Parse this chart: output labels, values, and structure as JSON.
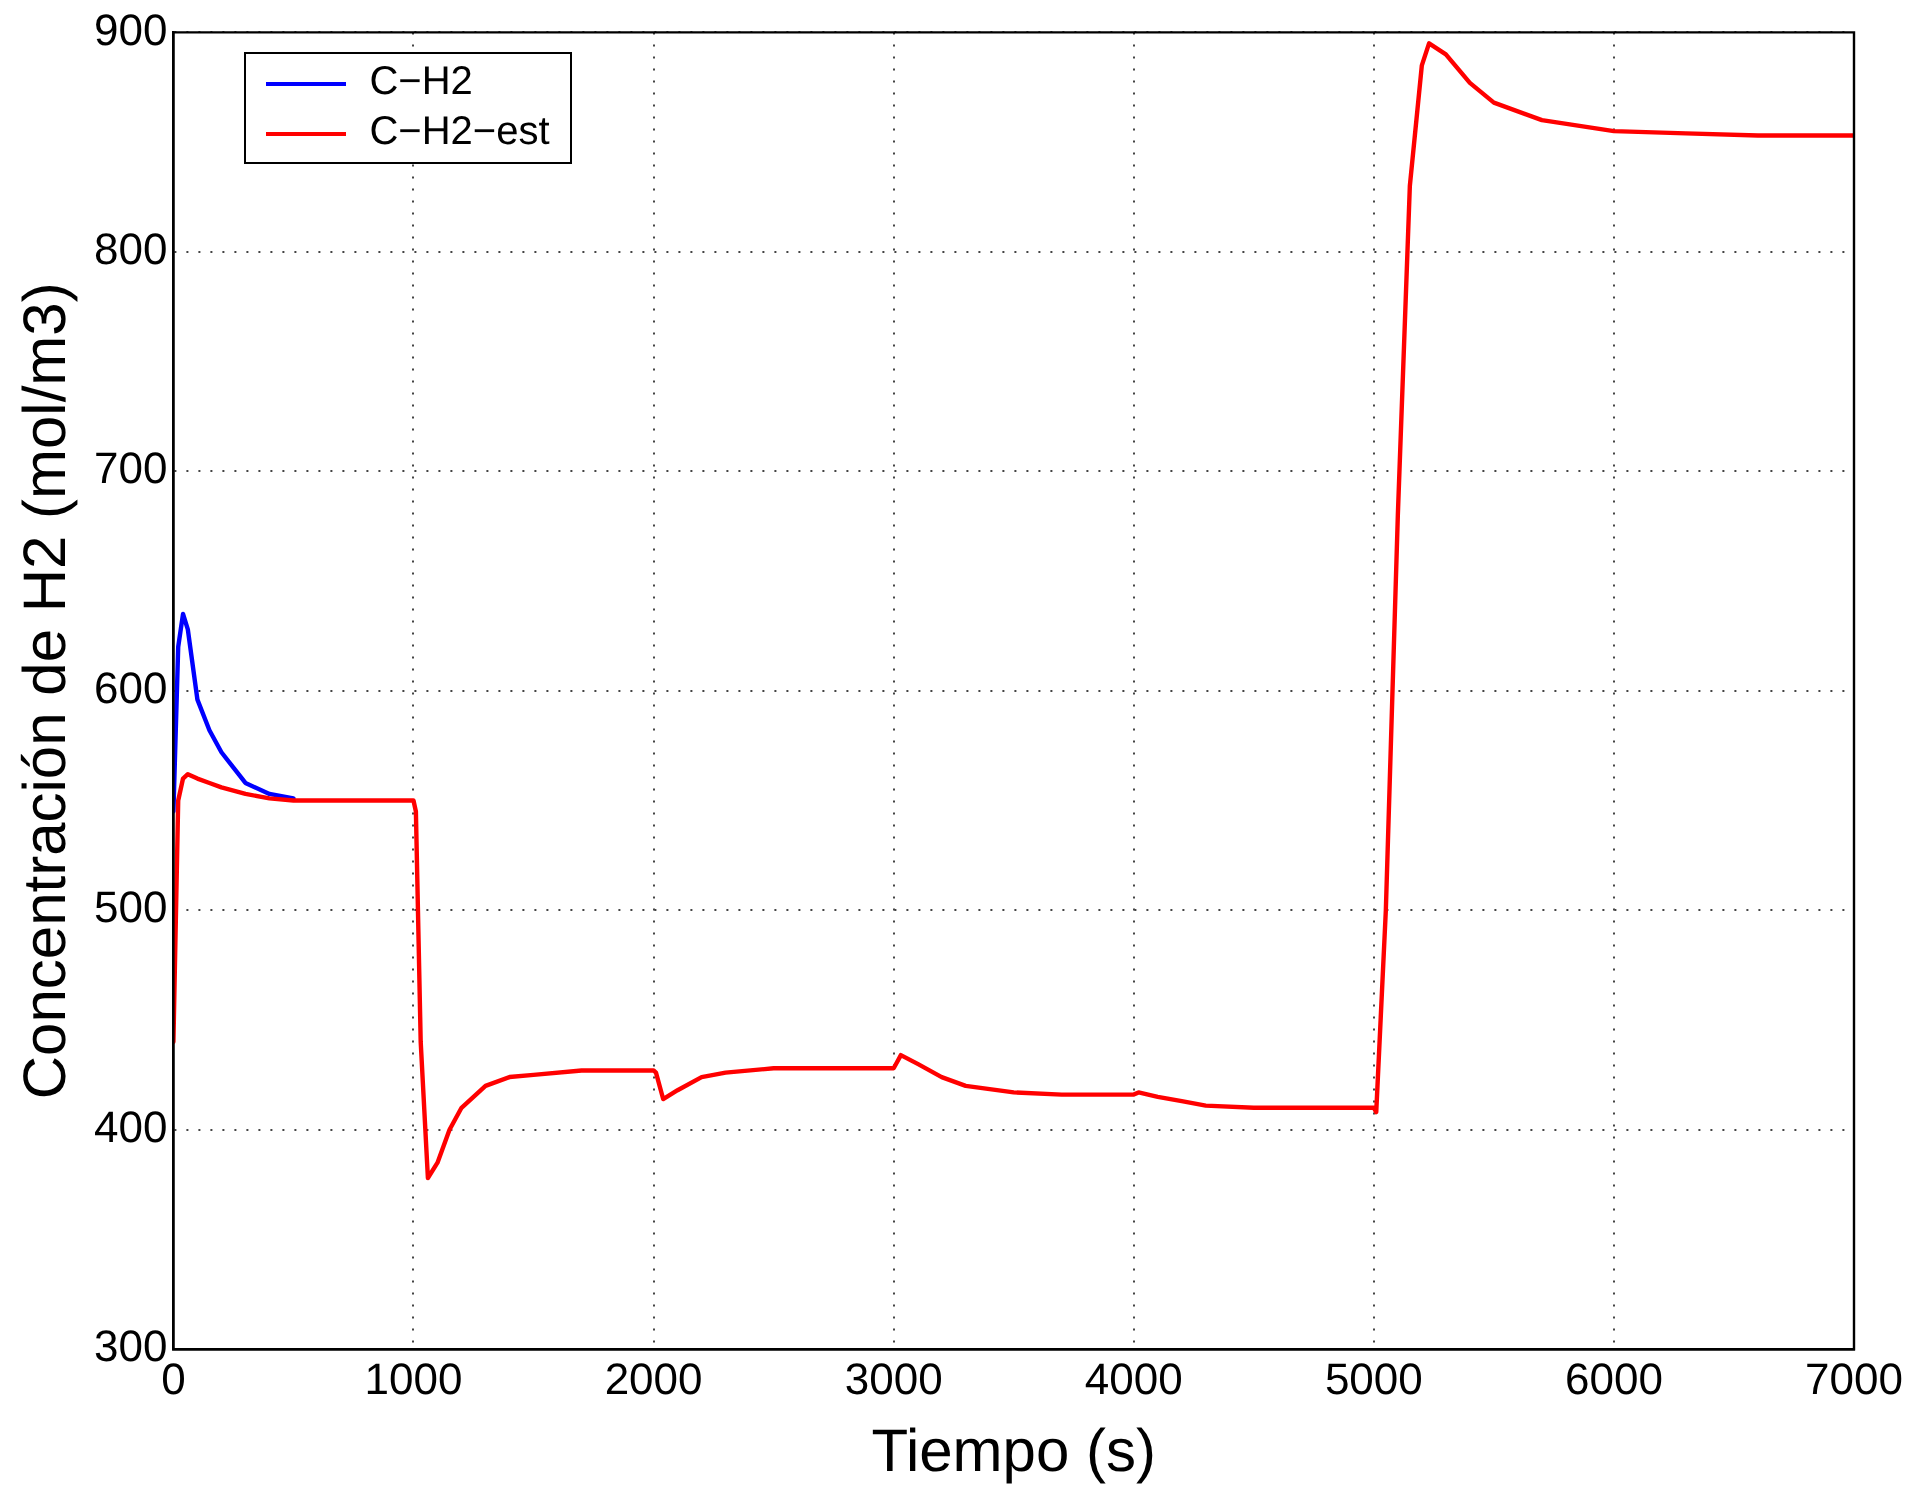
{
  "chart_data": {
    "type": "line",
    "xlabel": "Tiempo (s)",
    "ylabel": "Concentración de H2 (mol/m3)",
    "xlim": [
      0,
      7000
    ],
    "ylim": [
      300,
      900
    ],
    "xticks": [
      0,
      1000,
      2000,
      3000,
      4000,
      5000,
      6000,
      7000
    ],
    "yticks": [
      300,
      400,
      500,
      600,
      700,
      800,
      900
    ],
    "grid": true,
    "legend": "top left",
    "marker": "none",
    "line_style": "solid",
    "x": [
      0,
      20,
      40,
      60,
      100,
      150,
      200,
      300,
      400,
      500,
      600,
      800,
      1000,
      1010,
      1030,
      1060,
      1100,
      1150,
      1200,
      1300,
      1400,
      1500,
      1700,
      2000,
      2010,
      2040,
      2100,
      2200,
      2300,
      2500,
      2700,
      3000,
      3015,
      3030,
      3100,
      3200,
      3300,
      3500,
      3700,
      4000,
      4020,
      4100,
      4200,
      4300,
      4500,
      4700,
      5000,
      5010,
      5050,
      5100,
      5150,
      5200,
      5230,
      5300,
      5400,
      5500,
      5700,
      6000,
      6300,
      6600,
      7000
    ],
    "series": [
      {
        "name": "C−H2",
        "color": "#0000ff",
        "values": [
          545,
          620,
          635,
          628,
          596,
          582,
          572,
          558,
          553,
          551,
          null,
          null,
          null,
          null,
          null,
          null,
          null,
          null,
          null,
          null,
          null,
          null,
          null,
          null,
          null,
          null,
          null,
          null,
          null,
          null,
          null,
          null,
          null,
          null,
          null,
          null,
          null,
          null,
          null,
          null,
          null,
          null,
          null,
          null,
          null,
          null,
          null,
          null,
          null,
          null,
          null,
          null,
          null,
          null,
          null,
          null,
          null,
          null,
          null,
          null,
          null
        ]
      },
      {
        "name": "C−H2−est",
        "color": "#ff0000",
        "values": [
          440,
          550,
          560,
          562,
          560,
          558,
          556,
          553,
          551,
          550,
          550,
          550,
          550,
          545,
          440,
          378,
          385,
          400,
          410,
          420,
          424,
          425,
          427,
          427,
          426,
          414,
          418,
          424,
          426,
          428,
          428,
          428,
          431,
          434,
          430,
          424,
          420,
          417,
          416,
          416,
          417,
          415,
          413,
          411,
          410,
          410,
          410,
          408,
          500,
          680,
          830,
          885,
          895,
          890,
          877,
          868,
          860,
          855,
          854,
          853,
          853
        ]
      }
    ]
  }
}
